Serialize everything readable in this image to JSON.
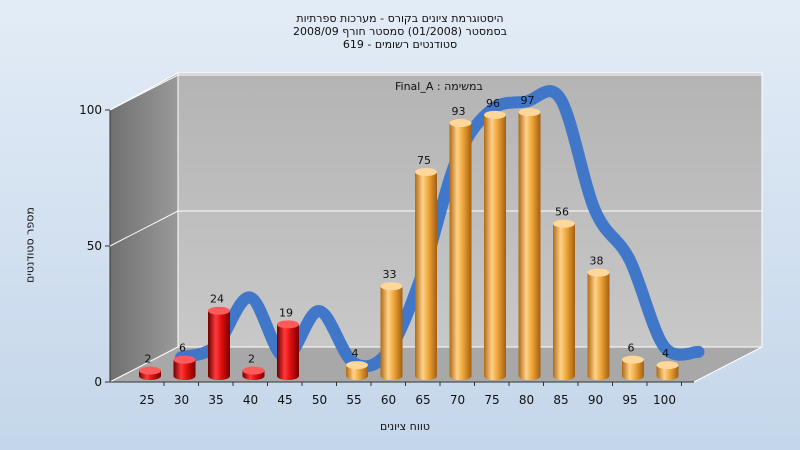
{
  "title": {
    "line1": "היסטוגרמת ציונים בקורס - מערכות ספרתיות",
    "line2": "בסמסטר  (01/2008)  סמסטר חורף 2008/09",
    "line3": "619 - סטודנטים רשומים"
  },
  "chart_data": {
    "type": "bar",
    "title": "היסטוגרמת ציונים בקורס - מערכות ספרתיות",
    "xlabel": "טווח ציונים",
    "ylabel": "מספר סטודנטים",
    "legend_text": "Final_A : במשימה",
    "categories": [
      "25",
      "30",
      "35",
      "40",
      "45",
      "50",
      "55",
      "60",
      "65",
      "70",
      "75",
      "80",
      "85",
      "90",
      "95",
      "100"
    ],
    "values": [
      2,
      6,
      24,
      2,
      19,
      0,
      4,
      33,
      75,
      93,
      96,
      97,
      56,
      38,
      6,
      4
    ],
    "y_ticks": [
      "0",
      "50",
      "100"
    ],
    "ylim": [
      0,
      100
    ],
    "grid": true,
    "colors": {
      "fail_bar": "#e01010",
      "pass_bar": "#f0a83c",
      "curve": "#3a73c8",
      "curve_faded": "#555555",
      "plot_back": "#bdbdbd",
      "plot_side": "#8a8a8a"
    }
  }
}
